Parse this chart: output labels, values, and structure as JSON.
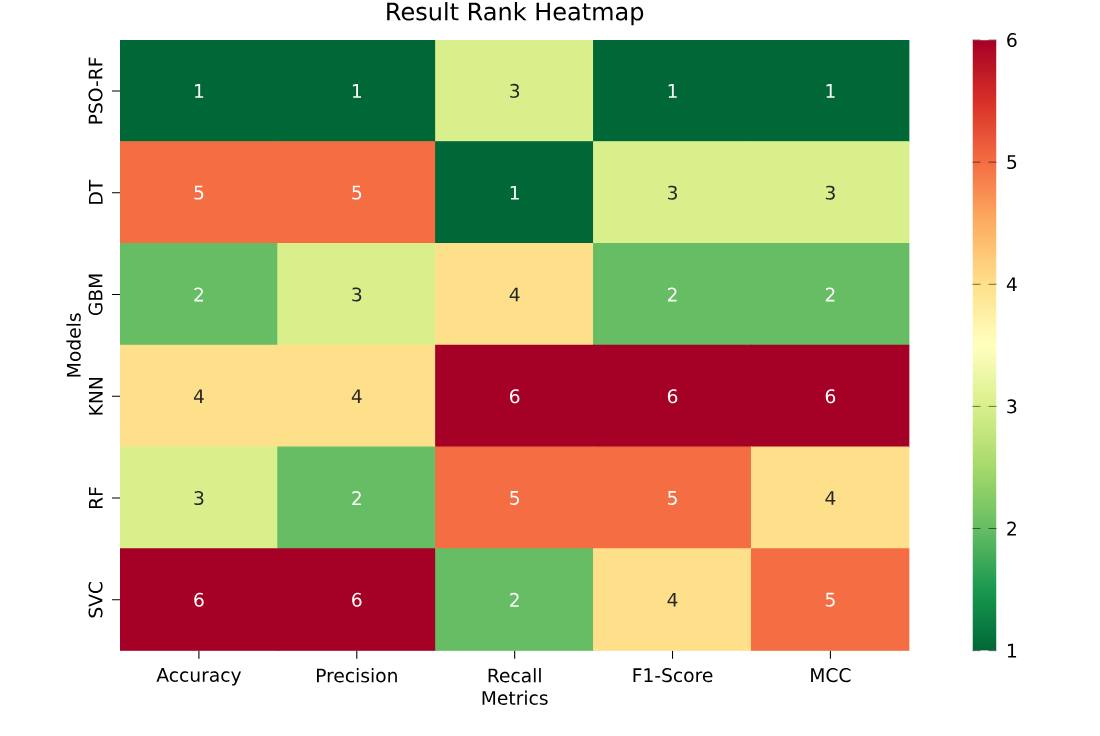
{
  "chart_data": {
    "type": "heatmap",
    "title": "Result Rank Heatmap",
    "xlabel": "Metrics",
    "ylabel": "Models",
    "categories": [
      "Accuracy",
      "Precision",
      "Recall",
      "F1-Score",
      "MCC"
    ],
    "y_categories": [
      "PSO-RF",
      "DT",
      "GBM",
      "KNN",
      "RF",
      "SVC"
    ],
    "cells": [
      [
        1,
        1,
        3,
        1,
        1
      ],
      [
        5,
        5,
        1,
        3,
        3
      ],
      [
        2,
        3,
        4,
        2,
        2
      ],
      [
        4,
        4,
        6,
        6,
        6
      ],
      [
        3,
        2,
        5,
        5,
        4
      ],
      [
        6,
        6,
        2,
        4,
        5
      ]
    ],
    "clim": [
      1,
      6
    ],
    "cticks": [
      1,
      2,
      3,
      4,
      5,
      6
    ],
    "data_labels": true
  }
}
